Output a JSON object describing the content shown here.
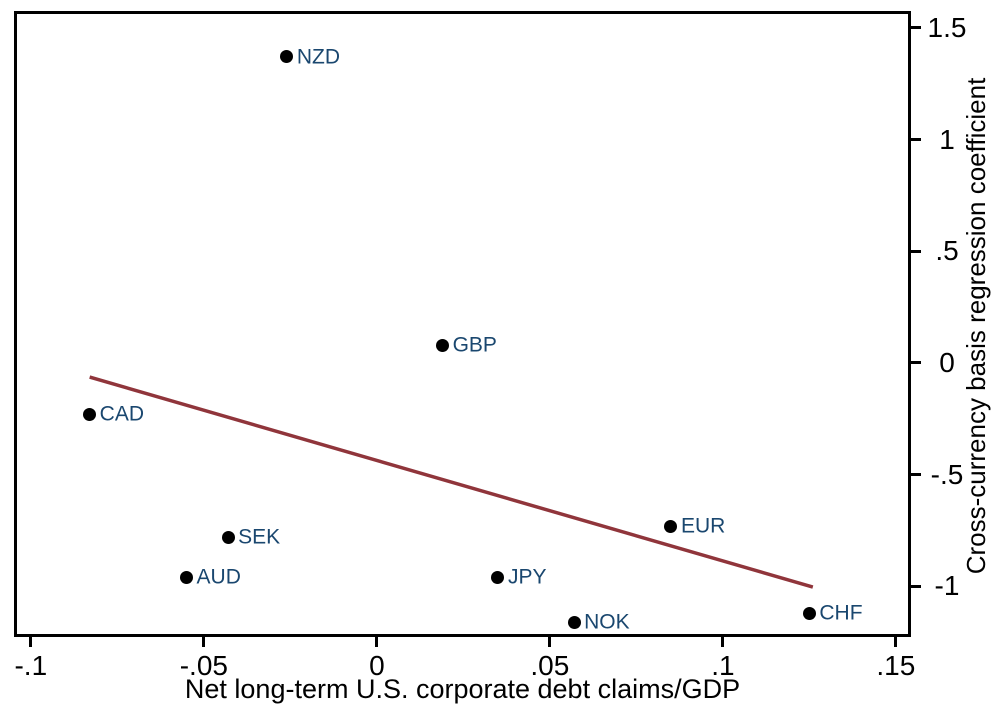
{
  "chart_data": {
    "type": "scatter",
    "title": "",
    "xlabel": "Net long-term U.S. corporate debt claims/GDP",
    "ylabel": "Cross-currency basis regression coefficient",
    "xlim": [
      -0.104,
      0.1535
    ],
    "ylim": [
      -1.213,
      1.562
    ],
    "grid": false,
    "legend": "none",
    "x_ticks": [
      {
        "value": -0.1,
        "label": "-.1"
      },
      {
        "value": -0.05,
        "label": "-.05"
      },
      {
        "value": 0,
        "label": "0"
      },
      {
        "value": 0.05,
        "label": ".05"
      },
      {
        "value": 0.1,
        "label": ".1"
      },
      {
        "value": 0.15,
        "label": ".15"
      }
    ],
    "y_ticks": [
      {
        "value": 1.5,
        "label": "1.5"
      },
      {
        "value": 1,
        "label": "1"
      },
      {
        "value": 0.5,
        "label": ".5"
      },
      {
        "value": 0,
        "label": "0"
      },
      {
        "value": -0.5,
        "label": "-.5"
      },
      {
        "value": -1,
        "label": "-1"
      }
    ],
    "points": [
      {
        "label": "NZD",
        "x": -0.026,
        "y": 1.37
      },
      {
        "label": "GBP",
        "x": 0.019,
        "y": 0.08
      },
      {
        "label": "CAD",
        "x": -0.083,
        "y": -0.23
      },
      {
        "label": "SEK",
        "x": -0.043,
        "y": -0.78
      },
      {
        "label": "AUD",
        "x": -0.055,
        "y": -0.96
      },
      {
        "label": "JPY",
        "x": 0.035,
        "y": -0.96
      },
      {
        "label": "NOK",
        "x": 0.057,
        "y": -1.16
      },
      {
        "label": "EUR",
        "x": 0.085,
        "y": -0.73
      },
      {
        "label": "CHF",
        "x": 0.125,
        "y": -1.12
      }
    ],
    "fit_line": {
      "x1": -0.083,
      "y1": -0.063,
      "x2": 0.126,
      "y2": -1.003
    },
    "colors": {
      "marker": "#000000",
      "marker_label": "#1a476f",
      "fit_line": "#90353b",
      "axis": "#000000",
      "background": "#ffffff"
    }
  }
}
